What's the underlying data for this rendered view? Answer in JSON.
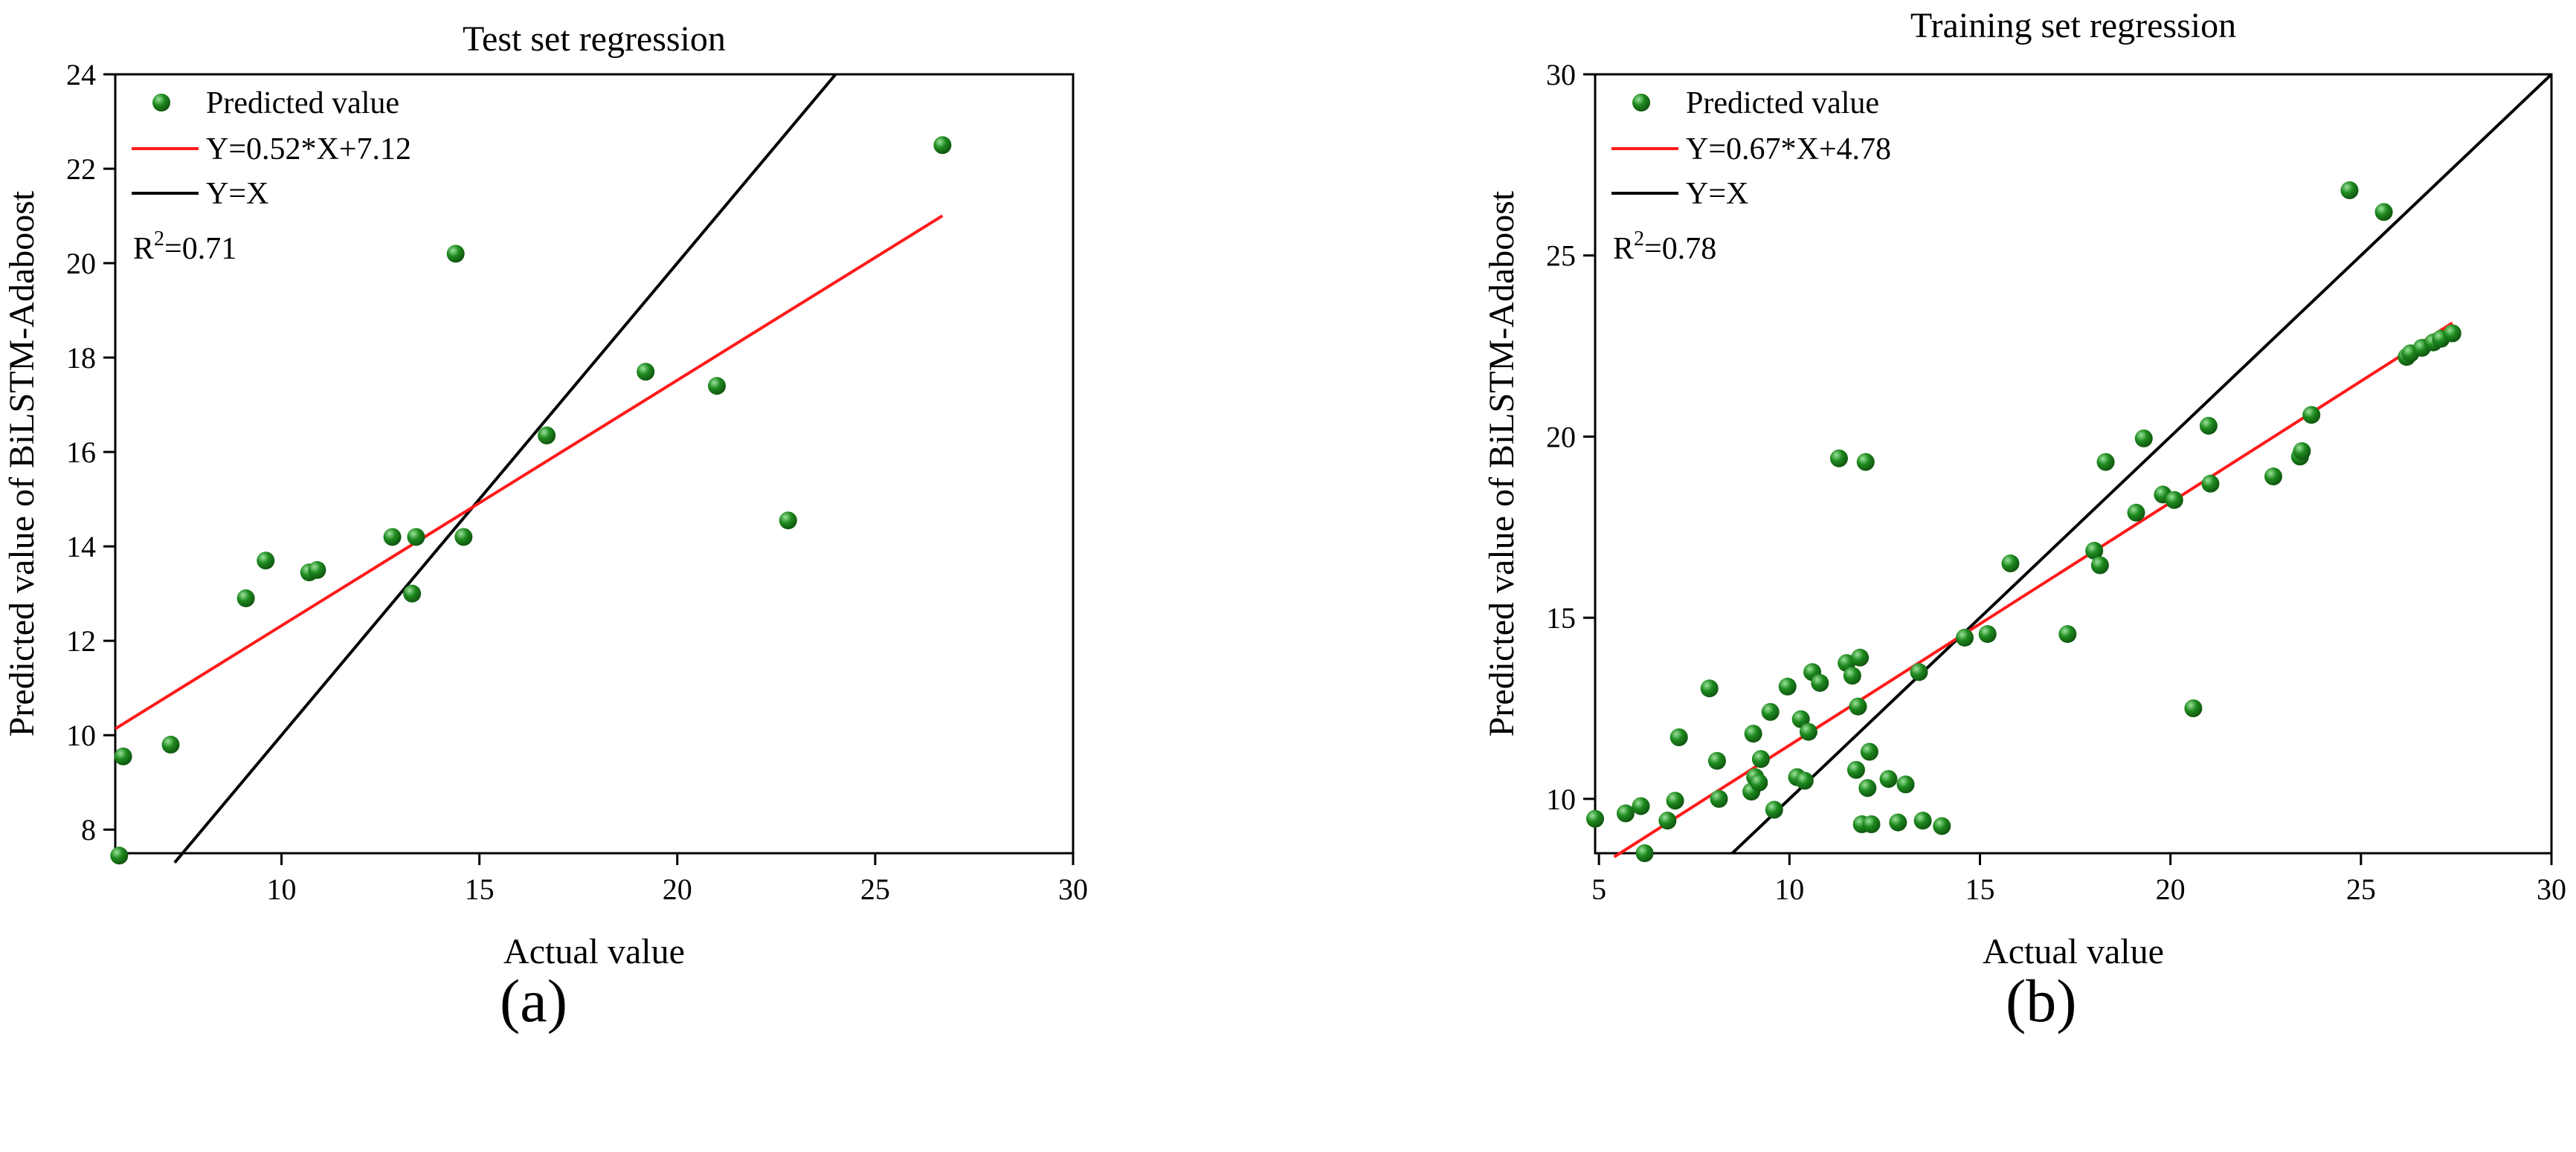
{
  "colors": {
    "point": "#1e8a1e",
    "point_highlight": "#9be39b",
    "point_edge": "#0d4d0d",
    "fit_line": "#ff1a1a",
    "identity_line": "#000000",
    "axis": "#000000",
    "background": "#ffffff"
  },
  "captions": [
    "(a)",
    "(b)"
  ],
  "chart_data": [
    {
      "type": "scatter",
      "title": "Test set regression",
      "xlabel": "Actual value",
      "ylabel": "Predicted value of BiLSTM-Adaboost",
      "xlim": [
        5.8,
        30
      ],
      "ylim": [
        7.5,
        24
      ],
      "xticks": [
        10,
        15,
        20,
        25,
        30
      ],
      "yticks": [
        8,
        10,
        12,
        14,
        16,
        18,
        20,
        22,
        24
      ],
      "legend": {
        "placement": "top-left",
        "entries": [
          "Predicted value",
          "Y=0.52*X+7.12",
          "Y=X"
        ]
      },
      "r2_label": "R",
      "r2_superscript": "2",
      "r2_value": "=0.71",
      "fit": {
        "slope": 0.52,
        "intercept": 7.12,
        "x_range": [
          5.8,
          26.7
        ]
      },
      "identity": {
        "x_range": [
          7.3,
          24.0
        ]
      },
      "points": [
        [
          5.9,
          7.45
        ],
        [
          6.0,
          9.55
        ],
        [
          7.2,
          9.8
        ],
        [
          9.1,
          12.9
        ],
        [
          9.6,
          13.7
        ],
        [
          10.7,
          13.45
        ],
        [
          10.9,
          13.5
        ],
        [
          12.8,
          14.2
        ],
        [
          13.3,
          13.0
        ],
        [
          13.4,
          14.2
        ],
        [
          14.4,
          20.2
        ],
        [
          14.6,
          14.2
        ],
        [
          16.7,
          16.35
        ],
        [
          19.2,
          17.7
        ],
        [
          21.0,
          17.4
        ],
        [
          22.8,
          14.55
        ],
        [
          26.7,
          22.5
        ]
      ]
    },
    {
      "type": "scatter",
      "title": "Training set regression",
      "xlabel": "Actual value",
      "ylabel": "Predicted value of BiLSTM-Adaboost",
      "xlim": [
        4.9,
        30
      ],
      "ylim": [
        8.5,
        30
      ],
      "xticks": [
        5,
        10,
        15,
        20,
        25,
        30
      ],
      "yticks": [
        10,
        15,
        20,
        25,
        30
      ],
      "legend": {
        "placement": "top-left",
        "entries": [
          "Predicted value",
          "Y=0.67*X+4.78",
          "Y=X"
        ]
      },
      "r2_label": "R",
      "r2_superscript": "2",
      "r2_value": "=0.78",
      "fit": {
        "slope": 0.67,
        "intercept": 4.78,
        "x_range": [
          5.4,
          27.4
        ]
      },
      "identity": {
        "x_range": [
          8.5,
          30.0
        ]
      },
      "points": [
        [
          4.9,
          9.45
        ],
        [
          5.7,
          9.6
        ],
        [
          6.1,
          9.8
        ],
        [
          6.2,
          8.5
        ],
        [
          6.8,
          9.4
        ],
        [
          7.0,
          9.95
        ],
        [
          7.1,
          11.7
        ],
        [
          7.9,
          13.05
        ],
        [
          8.1,
          11.05
        ],
        [
          8.15,
          10.0
        ],
        [
          9.0,
          10.2
        ],
        [
          9.05,
          11.8
        ],
        [
          9.1,
          10.6
        ],
        [
          9.2,
          10.45
        ],
        [
          9.25,
          11.1
        ],
        [
          9.5,
          12.4
        ],
        [
          9.6,
          9.7
        ],
        [
          9.95,
          13.1
        ],
        [
          10.2,
          10.6
        ],
        [
          10.3,
          12.2
        ],
        [
          10.4,
          10.5
        ],
        [
          10.5,
          11.85
        ],
        [
          10.6,
          13.5
        ],
        [
          10.8,
          13.2
        ],
        [
          11.3,
          19.4
        ],
        [
          11.5,
          13.75
        ],
        [
          11.65,
          13.4
        ],
        [
          11.75,
          10.8
        ],
        [
          11.8,
          12.55
        ],
        [
          11.85,
          13.9
        ],
        [
          11.9,
          9.3
        ],
        [
          12.0,
          19.3
        ],
        [
          12.05,
          10.3
        ],
        [
          12.1,
          11.3
        ],
        [
          12.15,
          9.3
        ],
        [
          12.6,
          10.55
        ],
        [
          12.85,
          9.35
        ],
        [
          13.05,
          10.4
        ],
        [
          13.4,
          13.5
        ],
        [
          13.5,
          9.4
        ],
        [
          14.0,
          9.25
        ],
        [
          14.6,
          14.45
        ],
        [
          15.2,
          14.55
        ],
        [
          15.8,
          16.5
        ],
        [
          17.3,
          14.55
        ],
        [
          18.0,
          16.85
        ],
        [
          18.15,
          16.45
        ],
        [
          18.3,
          19.3
        ],
        [
          19.1,
          17.9
        ],
        [
          19.3,
          19.95
        ],
        [
          19.8,
          18.4
        ],
        [
          20.1,
          18.25
        ],
        [
          20.6,
          12.5
        ],
        [
          21.0,
          20.3
        ],
        [
          21.05,
          18.7
        ],
        [
          22.7,
          18.9
        ],
        [
          23.4,
          19.45
        ],
        [
          23.45,
          19.6
        ],
        [
          23.7,
          20.6
        ],
        [
          24.7,
          26.8
        ],
        [
          25.6,
          26.2
        ],
        [
          26.2,
          22.2
        ],
        [
          26.3,
          22.3
        ],
        [
          26.6,
          22.45
        ],
        [
          26.9,
          22.6
        ],
        [
          27.1,
          22.7
        ],
        [
          27.4,
          22.85
        ]
      ]
    }
  ]
}
